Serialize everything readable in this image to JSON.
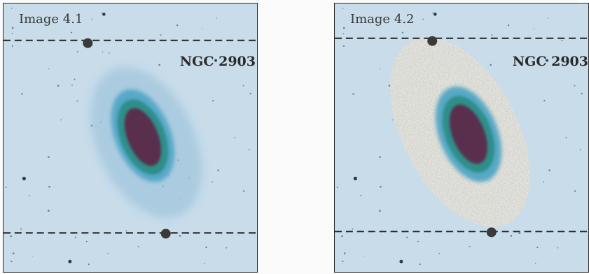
{
  "panels": [
    {
      "label": "Image 4.1",
      "object": "NGC 2903"
    },
    {
      "label": "Image 4.2",
      "object": "NGC 2903"
    }
  ],
  "colors": {
    "sky": "#c8dcea",
    "galaxy_outer": "#5ea7c8",
    "galaxy_ring": "#2d8f8a",
    "galaxy_core": "#5a2d4e",
    "marker": "#3a3a3a",
    "dashed_line": "#222222",
    "noise_halo": "#e6e3da"
  },
  "icons": {
    "marker": "filled-circle-marker",
    "star": "star-dot"
  }
}
